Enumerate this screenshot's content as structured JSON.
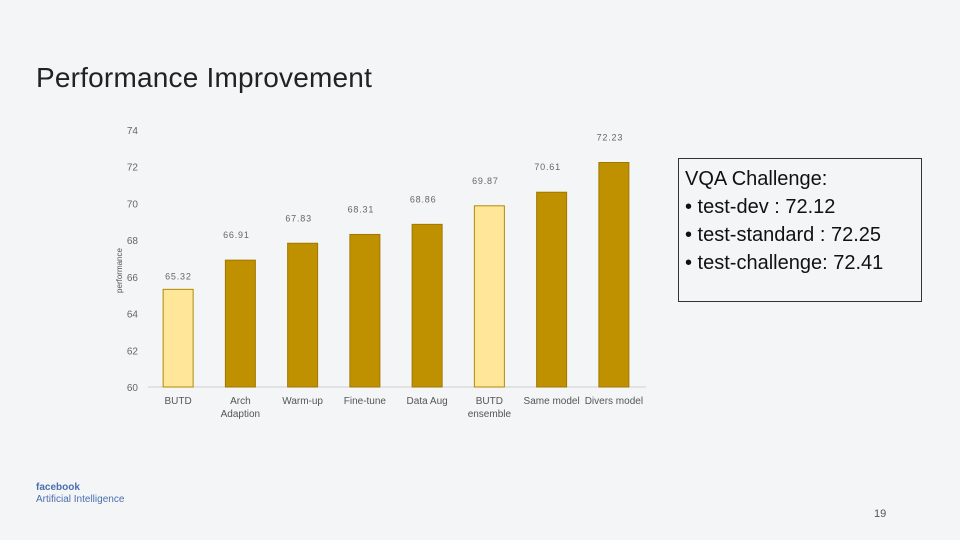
{
  "slide": {
    "title": "Performance Improvement",
    "page_number": "19",
    "logo": {
      "main": "facebook",
      "sub": "Artificial Intelligence"
    }
  },
  "info_box": {
    "heading": "VQA Challenge:",
    "items": [
      "• test-dev : 72.12",
      "• test-standard : 72.25",
      "• test-challenge: 72.41"
    ]
  },
  "chart_data": {
    "type": "bar",
    "categories": [
      [
        "BUTD"
      ],
      [
        "Arch",
        "Adaption"
      ],
      [
        "Warm-up"
      ],
      [
        "Fine-tune"
      ],
      [
        "Data Aug"
      ],
      [
        "BUTD",
        "ensemble"
      ],
      [
        "Same model"
      ],
      [
        "Divers model"
      ]
    ],
    "values": [
      65.32,
      66.91,
      67.83,
      68.31,
      68.86,
      69.87,
      70.61,
      72.23
    ],
    "value_labels": [
      "65.32",
      "66.91",
      "67.83",
      "68.31",
      "68.86",
      "69.87",
      "70.61",
      "72.23"
    ],
    "highlight": [
      true,
      false,
      false,
      false,
      false,
      true,
      false,
      false
    ],
    "colors": {
      "bar": "#bf9000",
      "highlight": "#ffe699",
      "bar_stroke": "#a07800",
      "highlight_stroke": "#b08a00"
    },
    "ylabel": "performance",
    "ylim": [
      60,
      74
    ],
    "yticks": [
      "74",
      "72",
      "70",
      "68",
      "66",
      "64",
      "62",
      "60"
    ]
  }
}
